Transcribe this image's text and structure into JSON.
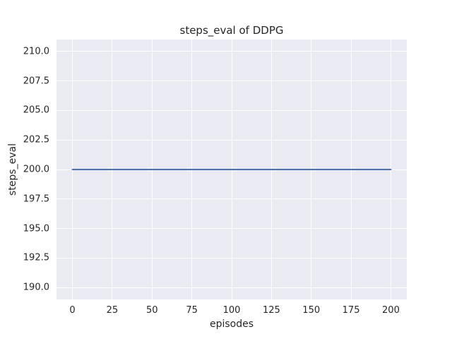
{
  "figure": {
    "background": "#ffffff",
    "plot_background": "#eaeaf2",
    "grid_color": "#ffffff",
    "text_color": "#262626"
  },
  "chart_data": {
    "type": "line",
    "title": "steps_eval of DDPG",
    "xlabel": "episodes",
    "ylabel": "steps_eval",
    "x": [
      0,
      200
    ],
    "series": [
      {
        "name": "DDPG",
        "y": [
          200,
          200
        ],
        "color": "#4c72b0",
        "linewidth": 2
      }
    ],
    "xlim": [
      -10,
      210
    ],
    "ylim": [
      189,
      211
    ],
    "xticks": [
      0,
      25,
      50,
      75,
      100,
      125,
      150,
      175,
      200
    ],
    "yticks": [
      190.0,
      192.5,
      195.0,
      197.5,
      200.0,
      202.5,
      205.0,
      207.5,
      210.0
    ],
    "ytick_decimals": 1,
    "grid": true,
    "legend": false
  }
}
